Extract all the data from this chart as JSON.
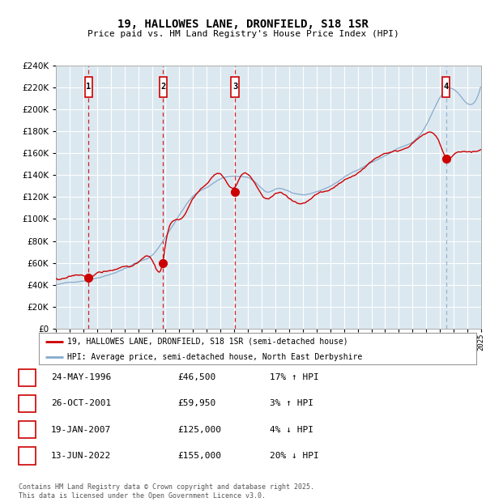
{
  "title": "19, HALLOWES LANE, DRONFIELD, S18 1SR",
  "subtitle": "Price paid vs. HM Land Registry's House Price Index (HPI)",
  "legend_line1": "19, HALLOWES LANE, DRONFIELD, S18 1SR (semi-detached house)",
  "legend_line2": "HPI: Average price, semi-detached house, North East Derbyshire",
  "footer": "Contains HM Land Registry data © Crown copyright and database right 2025.\nThis data is licensed under the Open Government Licence v3.0.",
  "sale_dates_decimal": [
    1996.39,
    2001.82,
    2007.05,
    2022.45
  ],
  "sale_prices": [
    46500,
    59950,
    125000,
    155000
  ],
  "sale_labels": [
    "1",
    "2",
    "3",
    "4"
  ],
  "sale_table": [
    [
      "1",
      "24-MAY-1996",
      "£46,500",
      "17% ↑ HPI"
    ],
    [
      "2",
      "26-OCT-2001",
      "£59,950",
      "3% ↑ HPI"
    ],
    [
      "3",
      "19-JAN-2007",
      "£125,000",
      "4% ↓ HPI"
    ],
    [
      "4",
      "13-JUN-2022",
      "£155,000",
      "20% ↓ HPI"
    ]
  ],
  "red_color": "#cc0000",
  "blue_color": "#88aacc",
  "bg_plot": "#dce8f0",
  "bg_figure": "#ffffff",
  "grid_color": "#ffffff",
  "ylim": [
    0,
    240000
  ],
  "ytick_step": 20000,
  "xstart_year": 1994,
  "xend_year": 2025,
  "hpi_key_t": [
    1994.0,
    1995.0,
    1996.0,
    1997.0,
    1998.0,
    1999.0,
    2000.0,
    2001.0,
    2002.0,
    2003.0,
    2004.0,
    2005.0,
    2006.0,
    2007.5,
    2008.5,
    2009.5,
    2010.0,
    2011.0,
    2012.0,
    2013.0,
    2014.0,
    2015.0,
    2016.0,
    2017.0,
    2018.0,
    2019.0,
    2020.0,
    2021.0,
    2022.0,
    2023.0,
    2024.0,
    2025.0
  ],
  "hpi_key_v": [
    40000,
    42000,
    44000,
    47000,
    51000,
    56000,
    62000,
    68000,
    85000,
    105000,
    122000,
    130000,
    138000,
    140000,
    135000,
    125000,
    128000,
    126000,
    122000,
    125000,
    130000,
    138000,
    145000,
    152000,
    158000,
    165000,
    170000,
    185000,
    210000,
    218000,
    205000,
    222000
  ],
  "price_key_t": [
    1994.0,
    1995.0,
    1996.0,
    1996.39,
    1997.0,
    1998.0,
    1999.0,
    2000.0,
    2001.0,
    2001.82,
    2002.0,
    2003.0,
    2004.0,
    2005.0,
    2006.0,
    2007.05,
    2007.5,
    2008.5,
    2009.5,
    2010.0,
    2011.0,
    2012.0,
    2013.0,
    2014.0,
    2015.0,
    2016.0,
    2017.0,
    2018.0,
    2019.0,
    2020.0,
    2021.0,
    2022.0,
    2022.45,
    2023.0,
    2024.0,
    2025.0
  ],
  "price_key_v": [
    46000,
    46500,
    48000,
    46500,
    50000,
    52000,
    56000,
    60000,
    61000,
    59950,
    75000,
    95000,
    115000,
    128000,
    138000,
    125000,
    135000,
    128000,
    115000,
    120000,
    115000,
    110000,
    118000,
    122000,
    130000,
    138000,
    148000,
    158000,
    162000,
    168000,
    178000,
    168000,
    155000,
    158000,
    162000,
    165000
  ]
}
